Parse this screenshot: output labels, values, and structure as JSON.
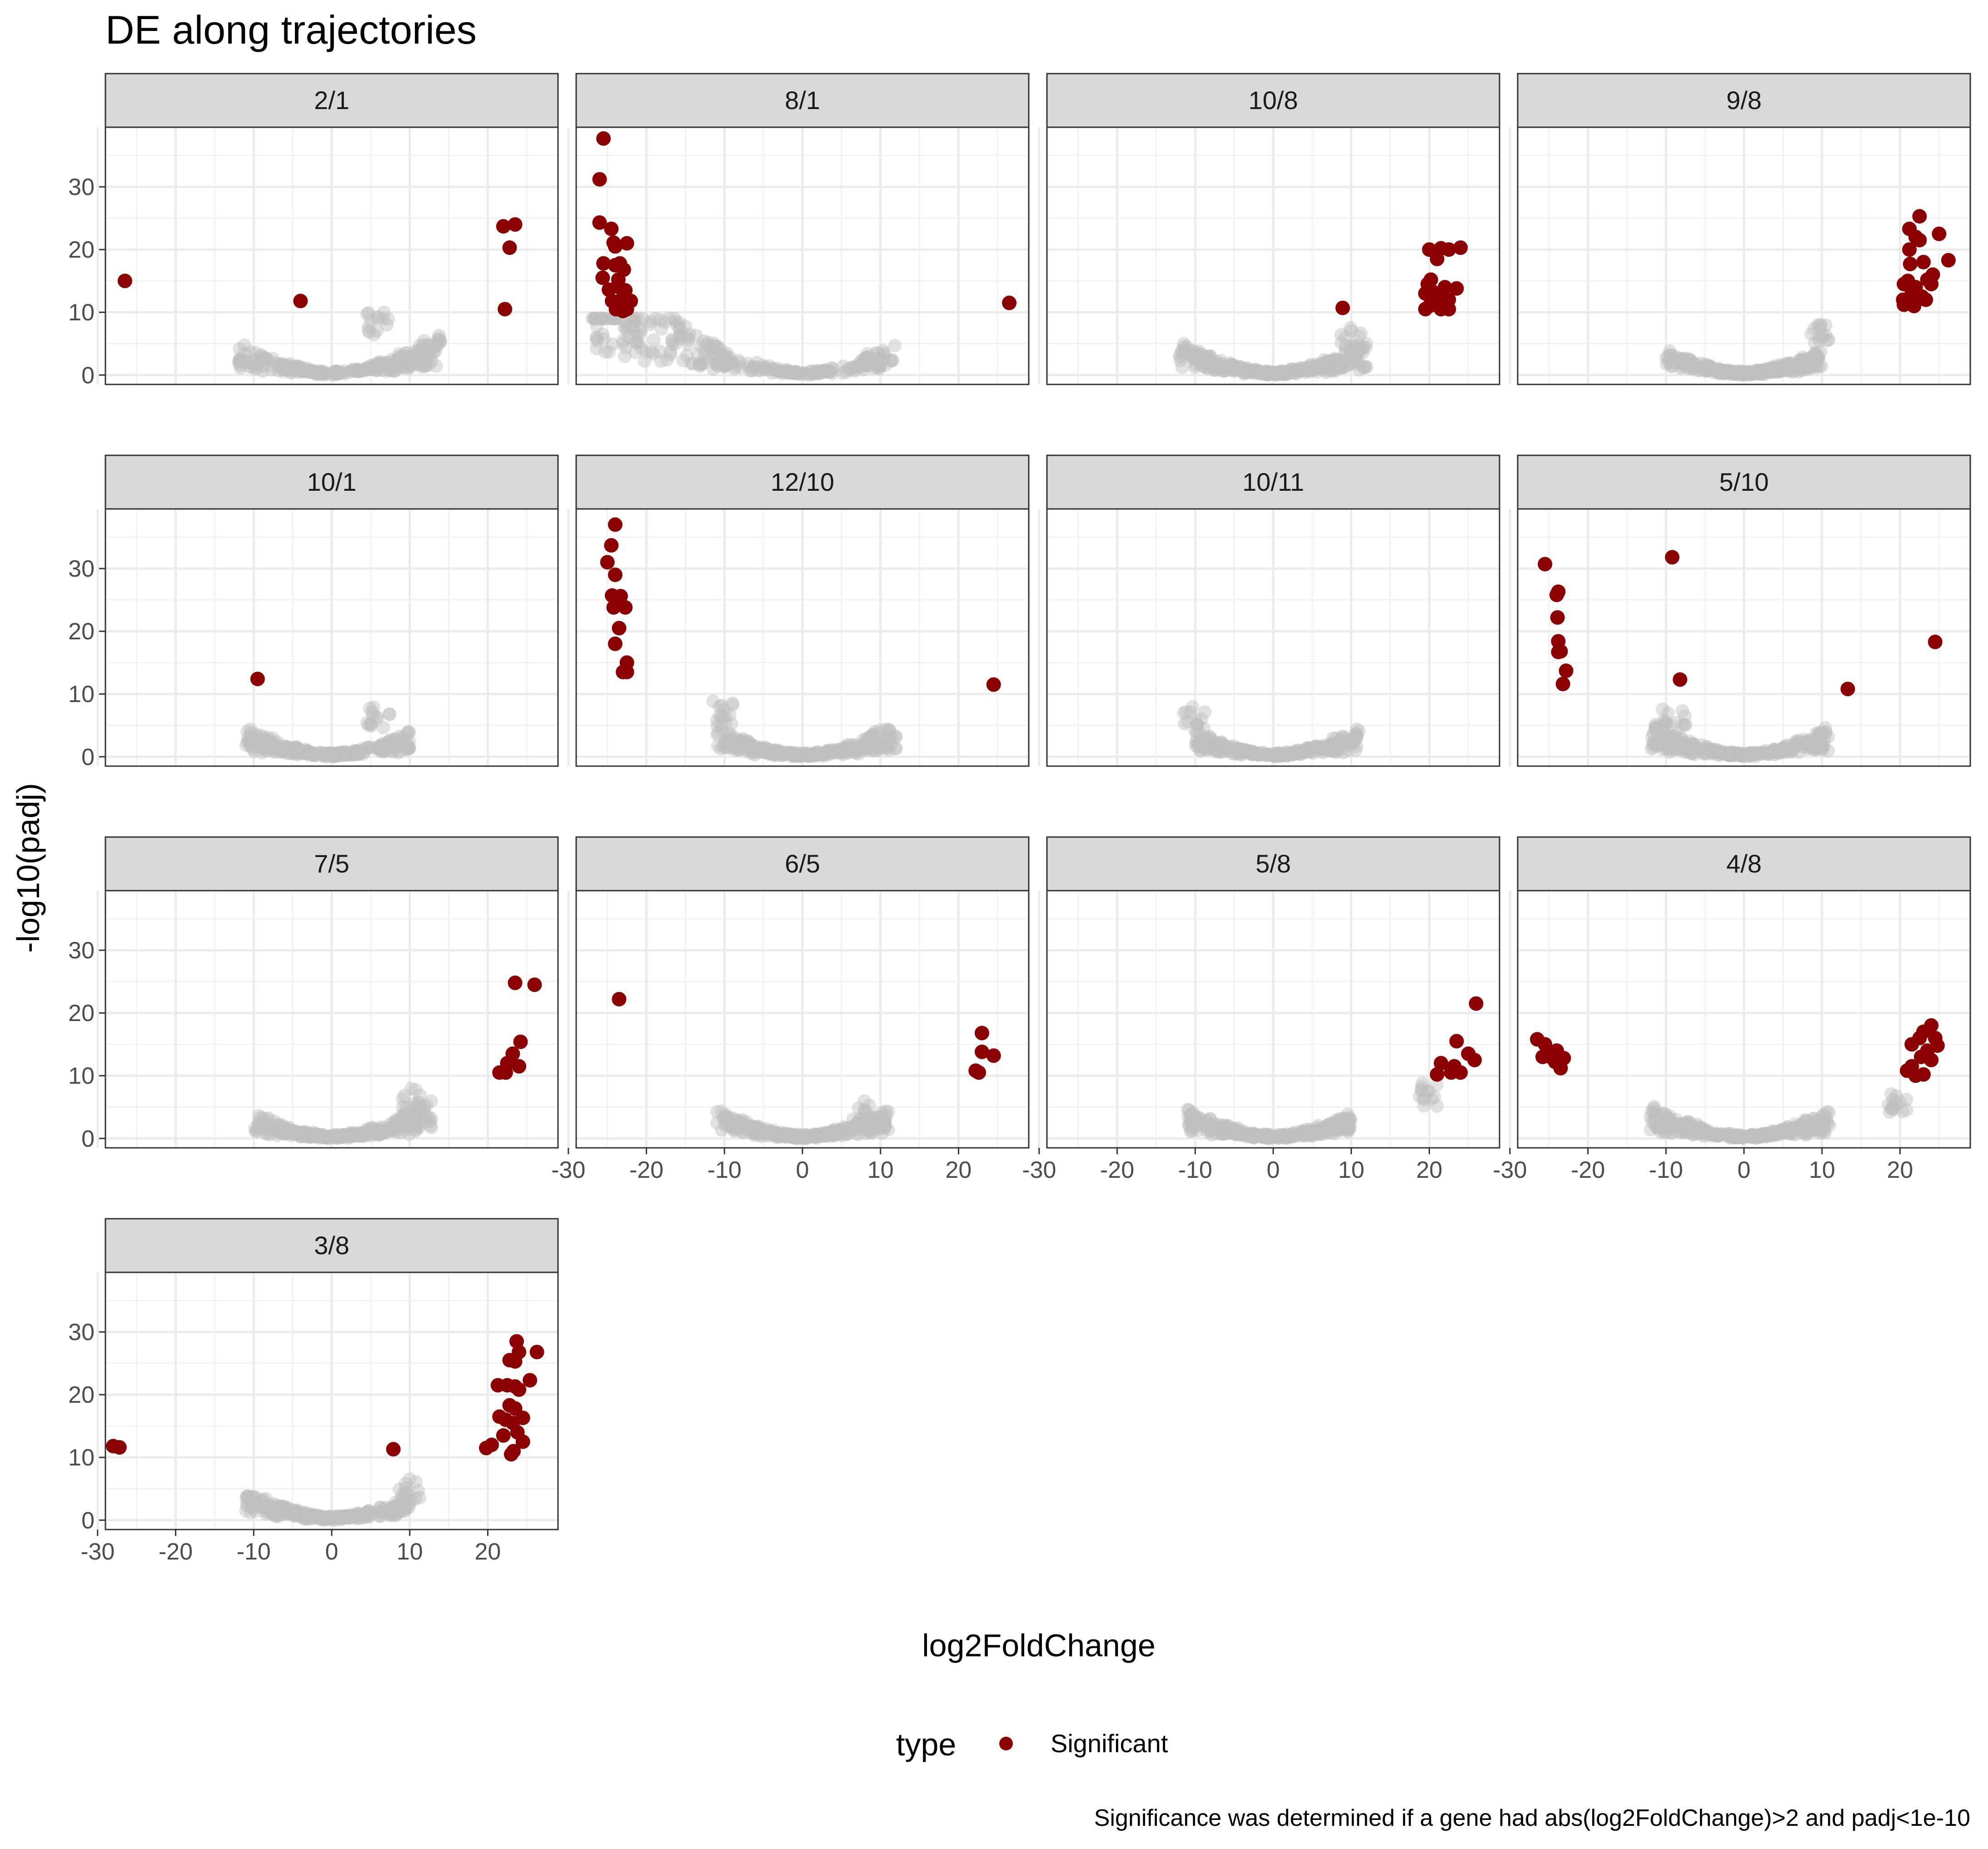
{
  "chart_data": {
    "type": "scatter",
    "title": "DE along trajectories",
    "xlabel": "log2FoldChange",
    "ylabel": "-log10(padj)",
    "xlim": [
      -29,
      29
    ],
    "ylim": [
      -1.5,
      39.5
    ],
    "x_ticks": [
      -30,
      -20,
      -10,
      0,
      10,
      20
    ],
    "y_ticks": [
      0,
      10,
      20,
      30
    ],
    "grid": true,
    "facet_layout": {
      "ncol": 4
    },
    "legend": {
      "title": "type",
      "position": "bottom",
      "entries": [
        {
          "label": "Significant",
          "color": "#8b0000"
        }
      ]
    },
    "caption": "Significance was determined if a gene had abs(log2FoldChange)>2 and padj<1e-10",
    "colors": {
      "significant": "#8b0000",
      "background": "#bebebe",
      "strip": "#d9d9d9"
    },
    "panels": [
      {
        "label": "2/1",
        "significant": [
          [
            -26.5,
            15
          ],
          [
            -4,
            11.8
          ],
          [
            22,
            23.7
          ],
          [
            23.5,
            24
          ],
          [
            22.8,
            20.3
          ],
          [
            22.2,
            10.5
          ]
        ],
        "bg_range": [
          -12,
          14
        ],
        "bg_peak": [
          6,
          10
        ]
      },
      {
        "label": "8/1",
        "significant": [
          [
            -25.5,
            37.7
          ],
          [
            -26,
            31.2
          ],
          [
            -26,
            24.3
          ],
          [
            -24.5,
            23.3
          ],
          [
            -24.2,
            21.1
          ],
          [
            -24,
            20.5
          ],
          [
            -22.5,
            21
          ],
          [
            -25.5,
            17.8
          ],
          [
            -24,
            17.5
          ],
          [
            -23.4,
            17.8
          ],
          [
            -22.9,
            16.8
          ],
          [
            -25.6,
            15.5
          ],
          [
            -23.6,
            15.2
          ],
          [
            -24.8,
            13.6
          ],
          [
            -23.5,
            14
          ],
          [
            -22.7,
            13.5
          ],
          [
            -23.2,
            12
          ],
          [
            -24.4,
            11.8
          ],
          [
            -22,
            11.8
          ],
          [
            -23.9,
            10.5
          ],
          [
            -22.5,
            10.5
          ],
          [
            -23,
            10.2
          ],
          [
            26.5,
            11.5
          ]
        ],
        "bg_range": [
          -27,
          12
        ],
        "bg_peak": [
          -22,
          9
        ]
      },
      {
        "label": "10/8",
        "significant": [
          [
            8.9,
            10.7
          ],
          [
            20,
            20
          ],
          [
            21.5,
            20.2
          ],
          [
            22.5,
            20
          ],
          [
            24,
            20.3
          ],
          [
            21,
            18.5
          ],
          [
            20.2,
            15.2
          ],
          [
            19.8,
            14.5
          ],
          [
            22,
            14
          ],
          [
            23.5,
            13.8
          ],
          [
            20.4,
            13.3
          ],
          [
            19.5,
            13
          ],
          [
            21,
            12.5
          ],
          [
            22.5,
            12
          ],
          [
            20,
            11
          ],
          [
            21.5,
            10.5
          ],
          [
            19.5,
            10.5
          ],
          [
            22.5,
            10.5
          ]
        ],
        "bg_range": [
          -12,
          12
        ],
        "bg_peak": [
          10,
          8
        ]
      },
      {
        "label": "9/8",
        "significant": [
          [
            22.5,
            25.3
          ],
          [
            21.2,
            23.3
          ],
          [
            22,
            22
          ],
          [
            25,
            22.5
          ],
          [
            22.5,
            21.5
          ],
          [
            21.2,
            20
          ],
          [
            23,
            18
          ],
          [
            21.3,
            17.7
          ],
          [
            24.2,
            16
          ],
          [
            23.5,
            15.2
          ],
          [
            21,
            15
          ],
          [
            26.2,
            18.3
          ],
          [
            20.5,
            14.5
          ],
          [
            22,
            14
          ],
          [
            24,
            14.5
          ],
          [
            21.5,
            13
          ],
          [
            22.8,
            12.5
          ],
          [
            20.4,
            12
          ],
          [
            21.8,
            11
          ],
          [
            20.5,
            11.2
          ],
          [
            23.3,
            12
          ],
          [
            22,
            13.5
          ]
        ],
        "bg_range": [
          -10,
          10
        ],
        "bg_peak": [
          10,
          9
        ]
      },
      {
        "label": "10/1",
        "significant": [
          [
            -9.5,
            12.4
          ]
        ],
        "bg_range": [
          -11,
          10
        ],
        "bg_peak": [
          6,
          8
        ]
      },
      {
        "label": "12/10",
        "significant": [
          [
            -24,
            37
          ],
          [
            -24.5,
            33.7
          ],
          [
            -25,
            31
          ],
          [
            -24,
            29
          ],
          [
            -24.4,
            25.7
          ],
          [
            -23.3,
            25.6
          ],
          [
            -24.2,
            23.8
          ],
          [
            -22.7,
            23.8
          ],
          [
            -23.5,
            20.5
          ],
          [
            -24,
            18
          ],
          [
            -22.5,
            15
          ],
          [
            -23,
            13.5
          ],
          [
            -22.5,
            13.5
          ],
          [
            24.5,
            11.5
          ]
        ],
        "bg_range": [
          -11,
          12
        ],
        "bg_peak": [
          -10,
          9
        ]
      },
      {
        "label": "10/11",
        "significant": [],
        "bg_range": [
          -10,
          11
        ],
        "bg_peak": [
          -10,
          8
        ]
      },
      {
        "label": "5/10",
        "significant": [
          [
            -25.5,
            30.7
          ],
          [
            -23.8,
            26.3
          ],
          [
            -24,
            25.8
          ],
          [
            -23.9,
            22.2
          ],
          [
            -23.8,
            18.4
          ],
          [
            -23.5,
            16.8
          ],
          [
            -23.8,
            16.7
          ],
          [
            -22.8,
            13.7
          ],
          [
            -23.2,
            11.6
          ],
          [
            -9.2,
            31.8
          ],
          [
            -8.2,
            12.3
          ],
          [
            13.3,
            10.8
          ],
          [
            24.5,
            18.3
          ]
        ],
        "bg_range": [
          -12,
          11
        ],
        "bg_peak": [
          -9,
          8
        ]
      },
      {
        "label": "7/5",
        "significant": [
          [
            23.5,
            24.8
          ],
          [
            26,
            24.5
          ],
          [
            24.2,
            15.4
          ],
          [
            23.2,
            13.5
          ],
          [
            22.5,
            12
          ],
          [
            24,
            11.5
          ],
          [
            21.5,
            10.5
          ],
          [
            22.3,
            10.5
          ]
        ],
        "bg_range": [
          -10,
          13
        ],
        "bg_peak": [
          10,
          8
        ]
      },
      {
        "label": "6/5",
        "significant": [
          [
            -23.5,
            22.2
          ],
          [
            23,
            16.8
          ],
          [
            23,
            13.8
          ],
          [
            24.5,
            13.2
          ],
          [
            22.2,
            10.8
          ],
          [
            22.6,
            10.5
          ]
        ],
        "bg_range": [
          -11,
          11
        ],
        "bg_peak": [
          8,
          6
        ]
      },
      {
        "label": "5/8",
        "significant": [
          [
            26,
            21.5
          ],
          [
            23.5,
            15.5
          ],
          [
            25,
            13.5
          ],
          [
            25.8,
            12.5
          ],
          [
            21.5,
            12
          ],
          [
            23.2,
            11.5
          ],
          [
            22.8,
            10.5
          ],
          [
            21,
            10.2
          ],
          [
            24,
            10.5
          ]
        ],
        "bg_range": [
          -11,
          10
        ],
        "bg_peak": [
          20,
          9
        ]
      },
      {
        "label": "4/8",
        "significant": [
          [
            -26.5,
            15.8
          ],
          [
            -25.5,
            15
          ],
          [
            -25.8,
            13
          ],
          [
            -24,
            14
          ],
          [
            -24.2,
            12.2
          ],
          [
            -23.5,
            11.2
          ],
          [
            -23.1,
            12.8
          ],
          [
            -24.8,
            13
          ],
          [
            24,
            18
          ],
          [
            23,
            17
          ],
          [
            22.5,
            16
          ],
          [
            24.5,
            16
          ],
          [
            21.5,
            15
          ],
          [
            23.5,
            14
          ],
          [
            24.8,
            14.8
          ],
          [
            22.7,
            13
          ],
          [
            24,
            12.5
          ],
          [
            21.5,
            11.5
          ],
          [
            20.9,
            10.8
          ],
          [
            22,
            10
          ],
          [
            23,
            10.2
          ]
        ],
        "bg_range": [
          -12,
          11
        ],
        "bg_peak": [
          20,
          8
        ]
      },
      {
        "label": "3/8",
        "significant": [
          [
            -28,
            11.8
          ],
          [
            -27.2,
            11.6
          ],
          [
            7.9,
            11.3
          ],
          [
            23.7,
            28.5
          ],
          [
            24,
            26.8
          ],
          [
            26.3,
            26.8
          ],
          [
            22.8,
            25.5
          ],
          [
            23.5,
            25.3
          ],
          [
            25.4,
            22.3
          ],
          [
            21.3,
            21.5
          ],
          [
            22.5,
            21.5
          ],
          [
            23.5,
            21.3
          ],
          [
            24,
            20.8
          ],
          [
            22.8,
            18.3
          ],
          [
            23.5,
            17.8
          ],
          [
            21.5,
            16.5
          ],
          [
            22.3,
            16
          ],
          [
            24.5,
            16.3
          ],
          [
            23.2,
            15.5
          ],
          [
            23.8,
            14
          ],
          [
            22,
            13.5
          ],
          [
            24.5,
            12.5
          ],
          [
            20.5,
            12
          ],
          [
            23.3,
            11
          ],
          [
            19.8,
            11.5
          ],
          [
            23,
            10.5
          ]
        ],
        "bg_range": [
          -11,
          10
        ],
        "bg_peak": [
          10,
          7
        ]
      }
    ]
  }
}
